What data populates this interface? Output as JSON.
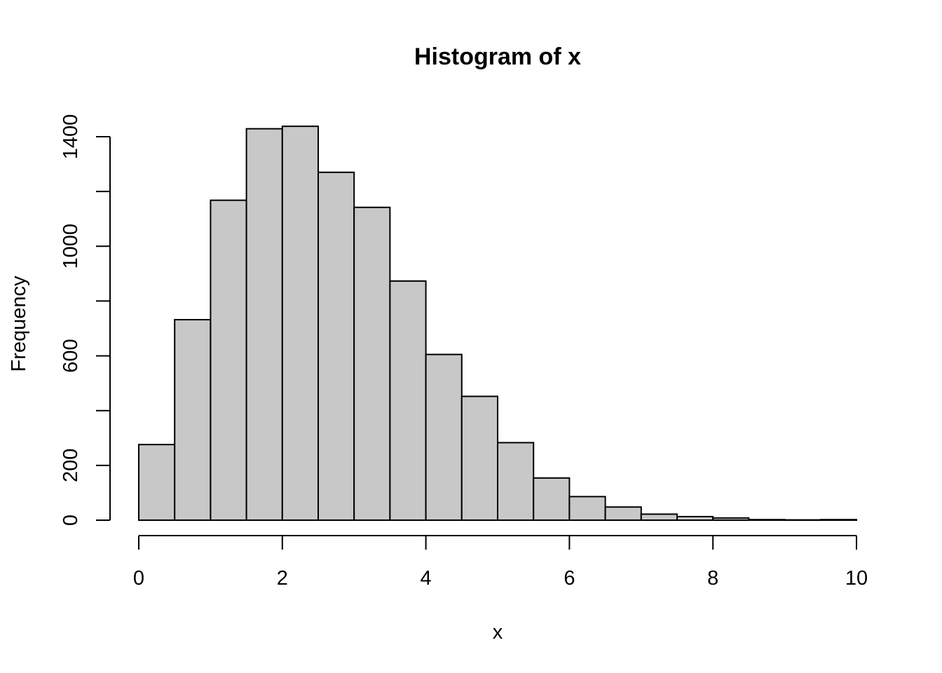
{
  "chart_data": {
    "type": "bar",
    "title": "Histogram of x",
    "xlabel": "x",
    "ylabel": "Frequency",
    "xlim": [
      0,
      10
    ],
    "ylim": [
      0,
      1400
    ],
    "xticks": [
      "0",
      "2",
      "4",
      "6",
      "8",
      "10"
    ],
    "yticks": [
      "0",
      "200",
      "600",
      "1000",
      "1400"
    ],
    "y_minor_ticks": [
      400,
      800,
      1200
    ],
    "bin_width": 0.5,
    "bin_starts": [
      0,
      0.5,
      1,
      1.5,
      2,
      2.5,
      3,
      3.5,
      4,
      4.5,
      5,
      5.5,
      6,
      6.5,
      7,
      7.5,
      8,
      8.5,
      9,
      9.5
    ],
    "values": [
      276,
      732,
      1168,
      1429,
      1438,
      1270,
      1142,
      873,
      605,
      452,
      283,
      154,
      86,
      48,
      22,
      13,
      8,
      2,
      1,
      2
    ],
    "bar_color": "#c8c8c8",
    "grid": false,
    "legend": "none"
  }
}
